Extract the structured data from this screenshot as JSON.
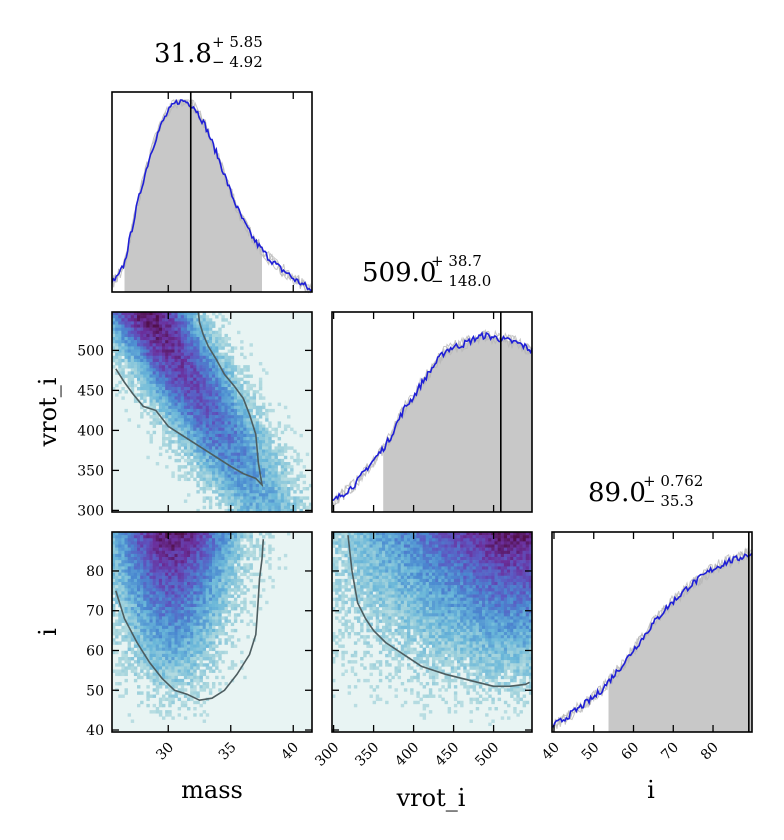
{
  "chart_data": {
    "type": "corner",
    "parameters": [
      {
        "name": "mass",
        "label": "mass",
        "median": 31.8,
        "plus": "+ 5.85",
        "minus": "− 4.92",
        "median_text": "31.8",
        "range": [
          25.5,
          41.5
        ],
        "ticks": [
          30,
          35,
          40
        ],
        "tick_labels": [
          "30",
          "35",
          "40"
        ]
      },
      {
        "name": "vrot_i",
        "label": "vrot_i",
        "median": 509.0,
        "plus": "+ 38.7",
        "minus": "− 148.0",
        "median_text": "509.0",
        "range": [
          298,
          548
        ],
        "ticks": [
          300,
          350,
          400,
          450,
          500
        ],
        "tick_labels": [
          "300",
          "350",
          "400",
          "450",
          "500"
        ]
      },
      {
        "name": "i",
        "label": "i",
        "median": 89.0,
        "plus": "+ 0.762",
        "minus": "− 35.3",
        "median_text": "89.0",
        "range": [
          39.5,
          89.8
        ],
        "ticks": [
          40,
          50,
          60,
          70,
          80
        ],
        "tick_labels": [
          "40",
          "50",
          "60",
          "70",
          "80"
        ]
      }
    ],
    "histograms": [
      {
        "param": "mass",
        "x": [
          25.5,
          26.0,
          26.5,
          27.0,
          27.5,
          28.0,
          28.5,
          29.0,
          29.5,
          30.0,
          30.5,
          31.0,
          31.5,
          32.0,
          32.5,
          33.0,
          33.5,
          34.0,
          34.5,
          35.0,
          35.5,
          36.0,
          36.5,
          37.0,
          37.5,
          38.0,
          38.5,
          39.0,
          39.5,
          40.0,
          40.5,
          41.0,
          41.5
        ],
        "y": [
          0.05,
          0.08,
          0.15,
          0.3,
          0.45,
          0.58,
          0.7,
          0.8,
          0.88,
          0.94,
          0.98,
          1.0,
          0.99,
          0.97,
          0.92,
          0.86,
          0.78,
          0.7,
          0.61,
          0.52,
          0.44,
          0.37,
          0.31,
          0.26,
          0.22,
          0.18,
          0.15,
          0.12,
          0.1,
          0.07,
          0.05,
          0.03,
          0.0
        ],
        "shade": [
          26.5,
          37.5
        ]
      },
      {
        "param": "vrot_i",
        "x": [
          298,
          310,
          320,
          330,
          340,
          350,
          360,
          370,
          380,
          390,
          400,
          410,
          420,
          430,
          440,
          450,
          460,
          470,
          480,
          490,
          500,
          510,
          520,
          530,
          540,
          548
        ],
        "y": [
          0.05,
          0.09,
          0.12,
          0.16,
          0.22,
          0.27,
          0.32,
          0.38,
          0.47,
          0.55,
          0.6,
          0.67,
          0.73,
          0.79,
          0.84,
          0.86,
          0.87,
          0.89,
          0.91,
          0.92,
          0.91,
          0.9,
          0.89,
          0.88,
          0.86,
          0.84
        ],
        "shade": [
          362,
          548
        ]
      },
      {
        "param": "i",
        "x": [
          39.5,
          42,
          44,
          46,
          48,
          50,
          52,
          54,
          56,
          58,
          60,
          62,
          64,
          66,
          68,
          70,
          72,
          74,
          76,
          78,
          80,
          82,
          84,
          86,
          88,
          89.8
        ],
        "y": [
          0.03,
          0.06,
          0.09,
          0.12,
          0.15,
          0.18,
          0.22,
          0.27,
          0.32,
          0.37,
          0.43,
          0.48,
          0.54,
          0.59,
          0.64,
          0.68,
          0.72,
          0.76,
          0.79,
          0.82,
          0.85,
          0.87,
          0.89,
          0.9,
          0.92,
          0.93
        ],
        "shade": [
          53.7,
          89.8
        ]
      }
    ],
    "contours": [
      {
        "x_param": "mass",
        "y_param": "vrot_i",
        "x": [
          25.8,
          26.5,
          27.2,
          28.0,
          29.0,
          30.0,
          31.0,
          32.0,
          33.0,
          34.0,
          35.0,
          36.0,
          37.0,
          37.5,
          37.2,
          37.0,
          36.5,
          36.0,
          35.3,
          34.5,
          33.8,
          33.2,
          32.8,
          32.5,
          32.4
        ],
        "y": [
          477,
          460,
          445,
          430,
          425,
          405,
          395,
          385,
          375,
          365,
          355,
          346,
          340,
          332,
          360,
          395,
          420,
          440,
          455,
          470,
          490,
          505,
          520,
          535,
          548
        ]
      },
      {
        "x_param": "mass",
        "y_param": "i",
        "x": [
          25.8,
          26.5,
          27.5,
          28.5,
          29.5,
          30.5,
          31.5,
          32.5,
          33.5,
          34.5,
          35.5,
          36.5,
          37.0,
          37.1,
          37.2,
          37.3,
          37.5,
          37.6
        ],
        "y": [
          75,
          68,
          62,
          57,
          53,
          50,
          49,
          47.5,
          48,
          50,
          54,
          59,
          64,
          68,
          73,
          78,
          83,
          88
        ]
      },
      {
        "x_param": "vrot_i",
        "y_param": "i",
        "x": [
          318,
          323,
          330,
          340,
          350,
          365,
          380,
          395,
          410,
          425,
          440,
          460,
          480,
          500,
          520,
          540,
          545
        ],
        "y": [
          89,
          80,
          72,
          68,
          65,
          62,
          60,
          58,
          56,
          55,
          54,
          53,
          52,
          51,
          51,
          51.5,
          52
        ]
      }
    ],
    "colormap": [
      "#e6f2f2",
      "#a9d6dd",
      "#6ab7d9",
      "#4a88d0",
      "#5c58c2",
      "#6b2f9c",
      "#52104d"
    ]
  }
}
